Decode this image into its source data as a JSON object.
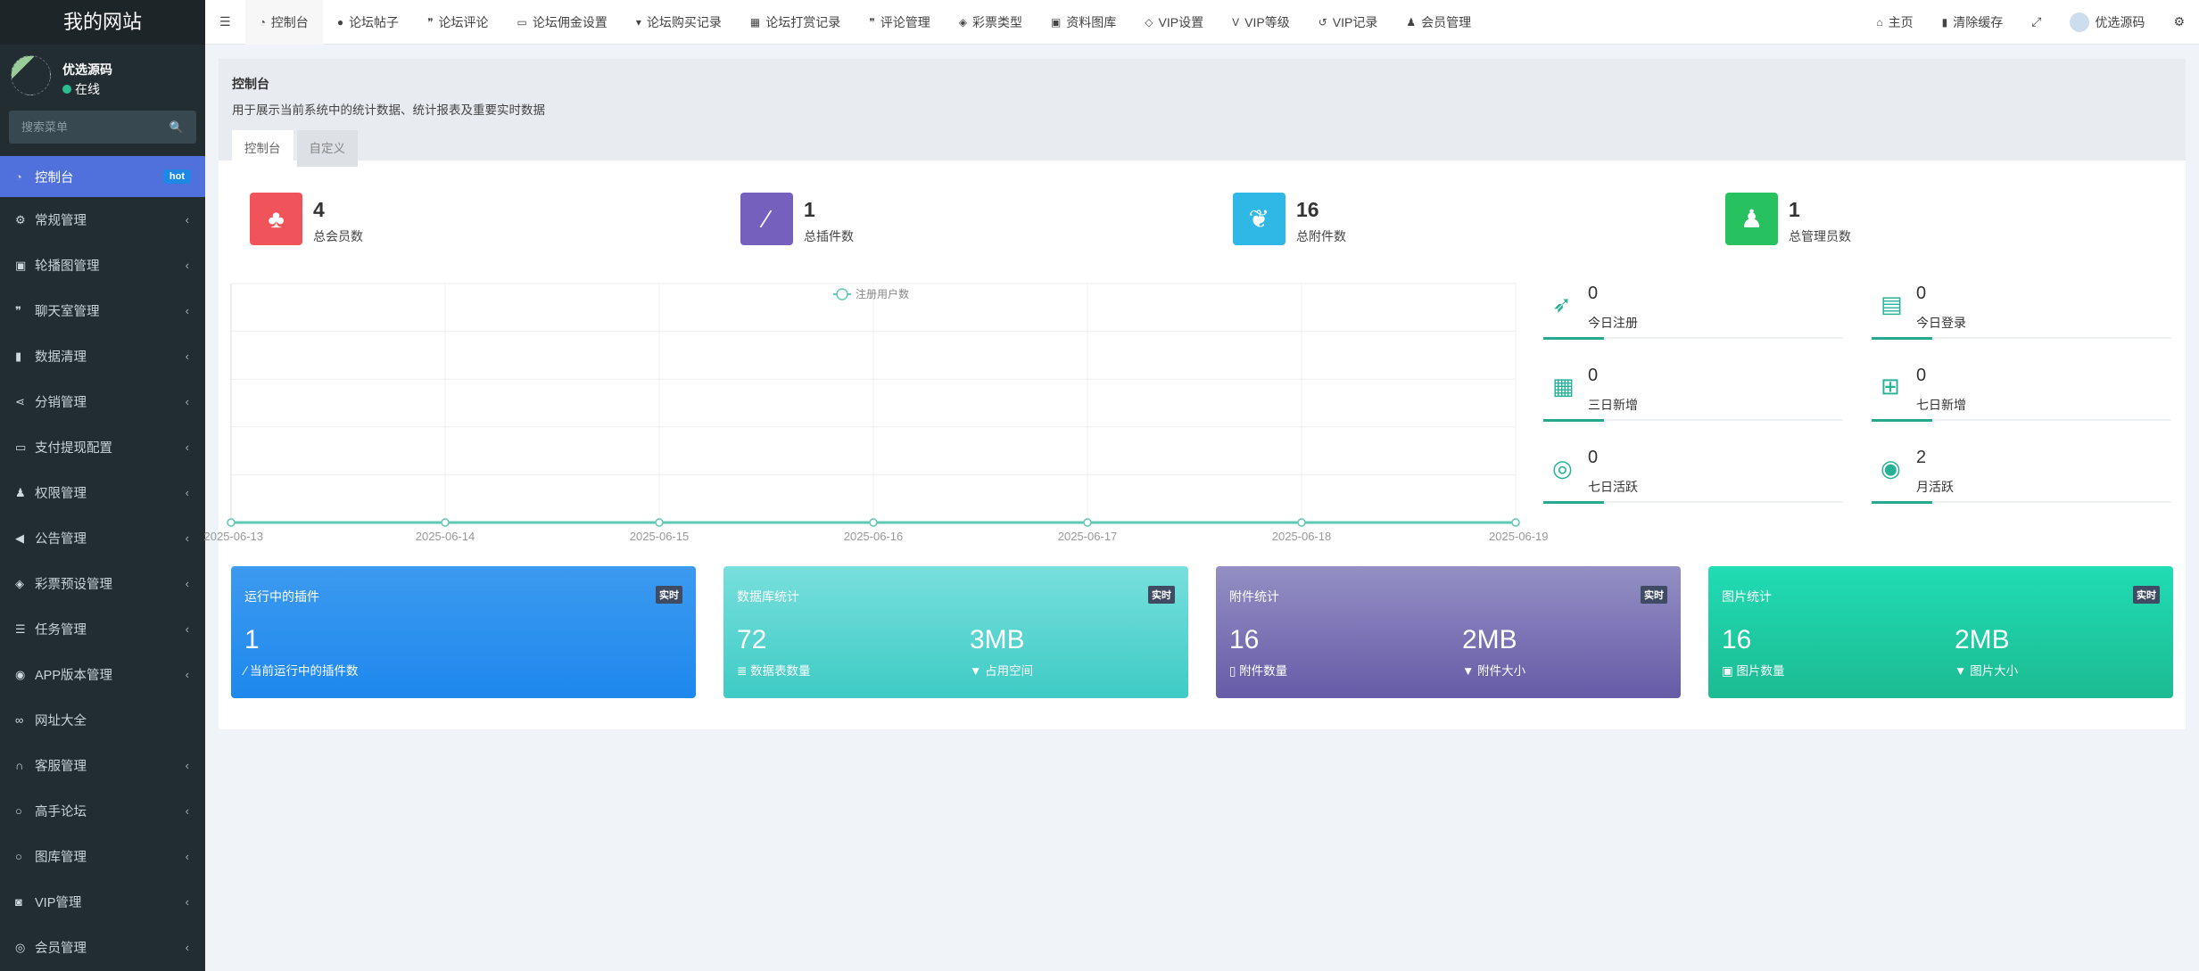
{
  "site_title": "我的网站",
  "user": {
    "name": "优选源码",
    "status": "在线"
  },
  "search": {
    "placeholder": "搜索菜单"
  },
  "sidebar": {
    "items": [
      {
        "label": "控制台",
        "icon": "dashboard-icon",
        "badge": "hot",
        "active": true
      },
      {
        "label": "常规管理",
        "icon": "cogs-icon"
      },
      {
        "label": "轮播图管理",
        "icon": "image-icon"
      },
      {
        "label": "聊天室管理",
        "icon": "comments-icon"
      },
      {
        "label": "数据清理",
        "icon": "trash-icon"
      },
      {
        "label": "分销管理",
        "icon": "share-icon"
      },
      {
        "label": "支付提现配置",
        "icon": "money-icon"
      },
      {
        "label": "权限管理",
        "icon": "group-icon"
      },
      {
        "label": "公告管理",
        "icon": "bullhorn-icon"
      },
      {
        "label": "彩票预设管理",
        "icon": "ticket-icon"
      },
      {
        "label": "任务管理",
        "icon": "tasks-icon"
      },
      {
        "label": "APP版本管理",
        "icon": "android-icon"
      },
      {
        "label": "网址大全",
        "icon": "link-icon"
      },
      {
        "label": "客服管理",
        "icon": "headphones-icon"
      },
      {
        "label": "高手论坛",
        "icon": "circle-icon"
      },
      {
        "label": "图库管理",
        "icon": "circle-icon"
      },
      {
        "label": "VIP管理",
        "icon": "vip-icon"
      },
      {
        "label": "会员管理",
        "icon": "user-circle-icon"
      }
    ]
  },
  "topnav": {
    "items": [
      {
        "label": "控制台",
        "icon": "dashboard-icon",
        "active": true
      },
      {
        "label": "论坛帖子",
        "icon": "comment-icon"
      },
      {
        "label": "论坛评论",
        "icon": "comments-icon"
      },
      {
        "label": "论坛佣金设置",
        "icon": "money-icon"
      },
      {
        "label": "论坛购买记录",
        "icon": "cart-icon"
      },
      {
        "label": "论坛打赏记录",
        "icon": "gift-icon"
      },
      {
        "label": "评论管理",
        "icon": "comments-icon"
      },
      {
        "label": "彩票类型",
        "icon": "ticket-icon"
      },
      {
        "label": "资料图库",
        "icon": "image-icon"
      },
      {
        "label": "VIP设置",
        "icon": "diamond-icon"
      },
      {
        "label": "VIP等级",
        "icon": "vimeo-icon"
      },
      {
        "label": "VIP记录",
        "icon": "history-icon"
      },
      {
        "label": "会员管理",
        "icon": "user-icon"
      }
    ],
    "right": {
      "home": "主页",
      "clear_cache": "清除缓存",
      "user": "优选源码"
    }
  },
  "page": {
    "title": "控制台",
    "description": "用于展示当前系统中的统计数据、统计报表及重要实时数据",
    "tabs": [
      "控制台",
      "自定义"
    ]
  },
  "stats": [
    {
      "value": "4",
      "label": "总会员数",
      "color": "#f0545a",
      "icon": "users-icon"
    },
    {
      "value": "1",
      "label": "总插件数",
      "color": "#7561bd",
      "icon": "magic-icon"
    },
    {
      "value": "16",
      "label": "总附件数",
      "color": "#2fb8e6",
      "icon": "leaf-icon"
    },
    {
      "value": "1",
      "label": "总管理员数",
      "color": "#28c15f",
      "icon": "user-icon"
    }
  ],
  "chart_data": {
    "type": "line",
    "x": [
      "2025-06-13",
      "2025-06-14",
      "2025-06-15",
      "2025-06-16",
      "2025-06-17",
      "2025-06-18",
      "2025-06-19"
    ],
    "series": [
      {
        "name": "注册用户数",
        "values": [
          0,
          0,
          0,
          0,
          0,
          0,
          0
        ]
      }
    ],
    "grid": true,
    "legend": "top-center",
    "color": "#5fc9b4"
  },
  "side_stats": [
    {
      "value": "0",
      "label": "今日注册",
      "icon": "rocket-icon"
    },
    {
      "value": "0",
      "label": "今日登录",
      "icon": "vcard-icon"
    },
    {
      "value": "0",
      "label": "三日新增",
      "icon": "calendar-icon"
    },
    {
      "value": "0",
      "label": "七日新增",
      "icon": "calendar-plus-icon"
    },
    {
      "value": "0",
      "label": "七日活跃",
      "icon": "user-circle-icon"
    },
    {
      "value": "2",
      "label": "月活跃",
      "icon": "user-circle-o-icon"
    }
  ],
  "cards": [
    {
      "title": "运行中的插件",
      "badge": "实时",
      "v1": "1",
      "l1": "当前运行中的插件数",
      "gradient": [
        "#3c9aef",
        "#1e88ee"
      ]
    },
    {
      "title": "数据库统计",
      "badge": "实时",
      "v1": "72",
      "l1": "数据表数量",
      "v2": "3MB",
      "l2": "占用空间",
      "gradient": [
        "#78dfdd",
        "#3ecbc5"
      ]
    },
    {
      "title": "附件统计",
      "badge": "实时",
      "v1": "16",
      "l1": "附件数量",
      "v2": "2MB",
      "l2": "附件大小",
      "gradient": [
        "#948fc4",
        "#665ba7"
      ]
    },
    {
      "title": "图片统计",
      "badge": "实时",
      "v1": "16",
      "l1": "图片数量",
      "v2": "2MB",
      "l2": "图片大小",
      "gradient": [
        "#20dcb4",
        "#1cbb92"
      ]
    }
  ]
}
